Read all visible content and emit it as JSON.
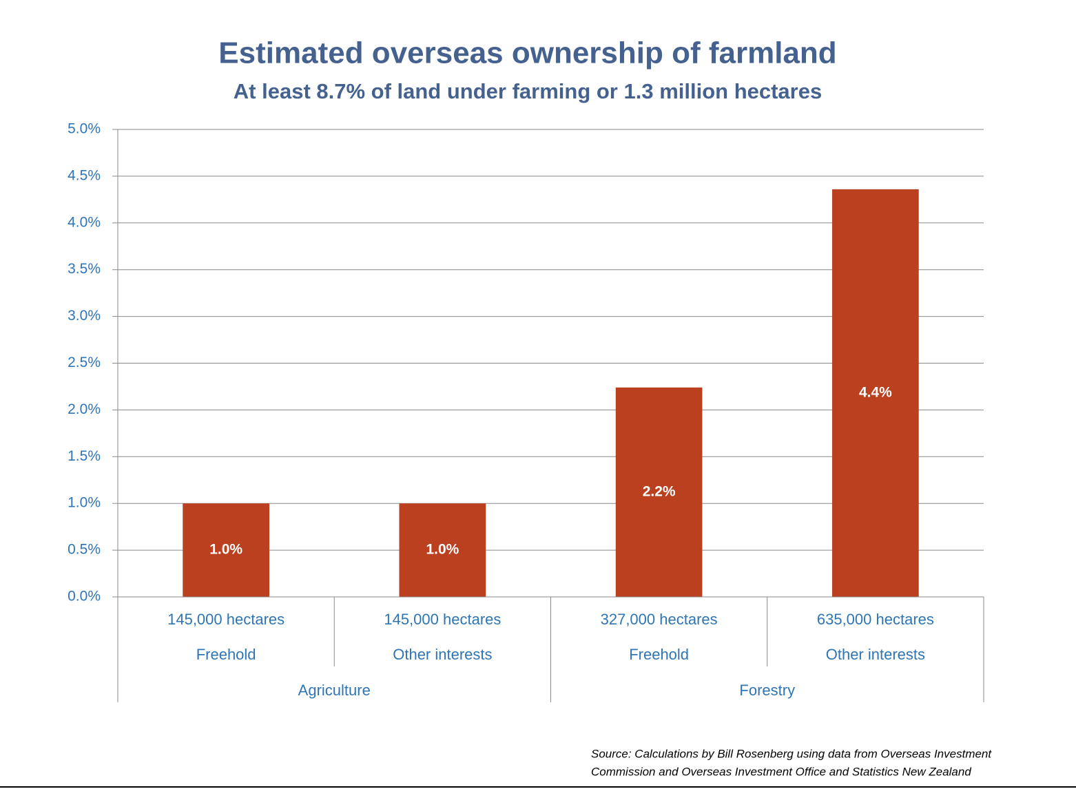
{
  "chart_data": {
    "type": "bar",
    "title": "Estimated overseas ownership of farmland",
    "subtitle": "At least 8.7% of land under farming or 1.3 million hectares",
    "color": "#bb4020",
    "groups": [
      {
        "name": "Agriculture",
        "categories": [
          "Freehold",
          "Other interests"
        ],
        "hectares": [
          "145,000 hectares",
          "145,000 hectares"
        ],
        "values": [
          1.0,
          1.0
        ],
        "value_labels": [
          "1.0%",
          "1.0%"
        ]
      },
      {
        "name": "Forestry",
        "categories": [
          "Freehold",
          "Other interests"
        ],
        "hectares": [
          "327,000 hectares",
          "635,000 hectares"
        ],
        "values": [
          2.24,
          4.36
        ],
        "value_labels": [
          "2.2%",
          "4.4%"
        ]
      }
    ],
    "ylim": [
      0,
      5
    ],
    "yticks": [
      {
        "value": 0,
        "label": "0.0%"
      },
      {
        "value": 0.5,
        "label": "0.5%"
      },
      {
        "value": 1,
        "label": "1.0%"
      },
      {
        "value": 1.5,
        "label": "1.5%"
      },
      {
        "value": 2,
        "label": "2.0%"
      },
      {
        "value": 2.5,
        "label": "2.5%"
      },
      {
        "value": 3,
        "label": "3.0%"
      },
      {
        "value": 3.5,
        "label": "3.5%"
      },
      {
        "value": 4,
        "label": "4.0%"
      },
      {
        "value": 4.5,
        "label": "4.5%"
      },
      {
        "value": 5,
        "label": "5.0%"
      }
    ],
    "grid": true,
    "source": [
      "Source: Calculations by Bill Rosenberg using data from Overseas Investment",
      "Commission and Overseas Investment Office and Statistics New Zealand"
    ]
  }
}
